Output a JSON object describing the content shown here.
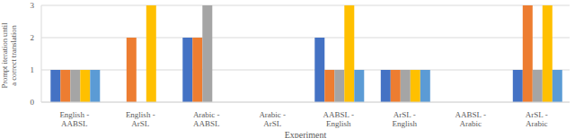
{
  "chart_data": {
    "type": "bar",
    "x_label": "Experiment",
    "y_label": "Prompt iteration until a correct translation",
    "categories": [
      "English - AABSL",
      "English - ArSL",
      "Arabic - AABSL",
      "Arabic - ArSL",
      "AABSL - English",
      "ArSL - English",
      "AABSL - Arabic",
      "ArSL - Arabic"
    ],
    "series": [
      {
        "color": "#4472c4",
        "values": [
          1,
          null,
          2,
          null,
          2,
          1,
          null,
          1
        ]
      },
      {
        "color": "#ed7d31",
        "values": [
          1,
          2,
          2,
          null,
          1,
          1,
          null,
          3
        ]
      },
      {
        "color": "#a5a5a5",
        "values": [
          1,
          null,
          3,
          null,
          1,
          1,
          null,
          1
        ]
      },
      {
        "color": "#ffc000",
        "values": [
          1,
          3,
          null,
          null,
          3,
          1,
          null,
          3
        ]
      },
      {
        "color": "#5b9bd5",
        "values": [
          1,
          null,
          null,
          null,
          1,
          1,
          null,
          1
        ]
      }
    ],
    "ylim": [
      0,
      3
    ],
    "yticks": [
      0,
      1,
      2,
      3
    ],
    "grid": true
  }
}
